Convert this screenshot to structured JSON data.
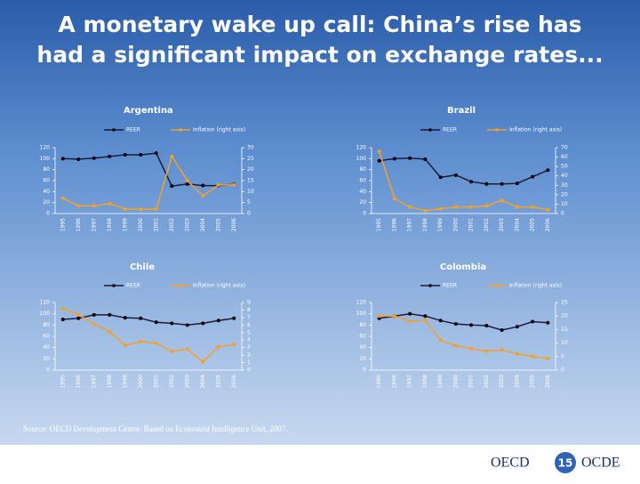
{
  "title": "A monetary wake up call: China’s rise has had a significant impact on exchange rates...",
  "chart_data": [
    {
      "type": "line",
      "title": "Argentina",
      "categories": [
        "1995",
        "1996",
        "1997",
        "1998",
        "1999",
        "2000",
        "2001",
        "2002",
        "2003",
        "2004",
        "2005",
        "2006"
      ],
      "series": [
        {
          "name": "REER",
          "color": "#1c1c3c",
          "axis": "y",
          "values": [
            100,
            99,
            101,
            104,
            107,
            107,
            110,
            50,
            54,
            51,
            51,
            53
          ]
        },
        {
          "name": "Inflation (right axis)",
          "color": "#f4a128",
          "axis": "y2",
          "values": [
            7,
            3.5,
            3.5,
            4.5,
            2,
            2,
            2,
            26,
            15,
            8,
            13,
            13
          ]
        }
      ],
      "ylim": [
        0,
        120
      ],
      "yticks": [
        0,
        20,
        40,
        60,
        80,
        100,
        120
      ],
      "y2lim": [
        0,
        30
      ],
      "y2ticks": [
        0,
        5,
        10,
        15,
        20,
        25,
        30
      ]
    },
    {
      "type": "line",
      "title": "Brazil",
      "categories": [
        "1995",
        "1996",
        "1997",
        "1998",
        "1999",
        "2000",
        "2001",
        "2002",
        "2003",
        "2004",
        "2005",
        "2006"
      ],
      "series": [
        {
          "name": "REER",
          "color": "#1c1c3c",
          "axis": "y",
          "values": [
            96,
            100,
            101,
            99,
            66,
            70,
            58,
            54,
            54,
            55,
            67,
            79
          ]
        },
        {
          "name": "Inflation (right axis)",
          "color": "#f4a128",
          "axis": "y2",
          "values": [
            66,
            16,
            7,
            3,
            5,
            7,
            7,
            8,
            14,
            7,
            7,
            4
          ]
        }
      ],
      "ylim": [
        0,
        120
      ],
      "yticks": [
        0,
        20,
        40,
        60,
        80,
        100,
        120
      ],
      "y2lim": [
        0,
        70
      ],
      "y2ticks": [
        0,
        10,
        20,
        30,
        40,
        50,
        60,
        70
      ]
    },
    {
      "type": "line",
      "title": "Chile",
      "categories": [
        "1995",
        "1996",
        "1997",
        "1998",
        "1999",
        "2000",
        "2001",
        "2002",
        "2003",
        "2004",
        "2005",
        "2006"
      ],
      "series": [
        {
          "name": "REER",
          "color": "#1c1c3c",
          "axis": "y",
          "values": [
            90,
            92,
            98,
            98,
            93,
            92,
            85,
            83,
            80,
            83,
            88,
            92
          ]
        },
        {
          "name": "Inflation (right axis)",
          "color": "#f4a128",
          "axis": "y2",
          "values": [
            8.2,
            7.4,
            6.1,
            5.1,
            3.3,
            3.8,
            3.6,
            2.5,
            2.8,
            1.1,
            3.1,
            3.4
          ]
        }
      ],
      "ylim": [
        0,
        120
      ],
      "yticks": [
        0,
        20,
        40,
        60,
        80,
        100,
        120
      ],
      "y2lim": [
        0,
        9
      ],
      "y2ticks": [
        0,
        1,
        2,
        3,
        4,
        5,
        6,
        7,
        8,
        9
      ]
    },
    {
      "type": "line",
      "title": "Colombia",
      "categories": [
        "1995",
        "1996",
        "1997",
        "1998",
        "1999",
        "2000",
        "2001",
        "2002",
        "2003",
        "2004",
        "2005",
        "2006"
      ],
      "series": [
        {
          "name": "REER",
          "color": "#1c1c3c",
          "axis": "y",
          "values": [
            92,
            96,
            100,
            96,
            88,
            82,
            80,
            79,
            71,
            77,
            86,
            84
          ]
        },
        {
          "name": "Inflation (right axis)",
          "color": "#f4a128",
          "axis": "y2",
          "values": [
            20,
            20,
            18,
            18.5,
            11,
            9,
            8,
            7,
            7.5,
            6,
            5,
            4.3
          ]
        }
      ],
      "ylim": [
        0,
        120
      ],
      "yticks": [
        0,
        20,
        40,
        60,
        80,
        100,
        120
      ],
      "y2lim": [
        0,
        25
      ],
      "y2ticks": [
        0,
        5,
        10,
        15,
        20,
        25
      ]
    }
  ],
  "source": "Source: OECD Development Centre. Based on Economist Intelligence Unit, 2007.",
  "footer": {
    "left": "OECD",
    "page": "15",
    "right": "OCDE"
  }
}
